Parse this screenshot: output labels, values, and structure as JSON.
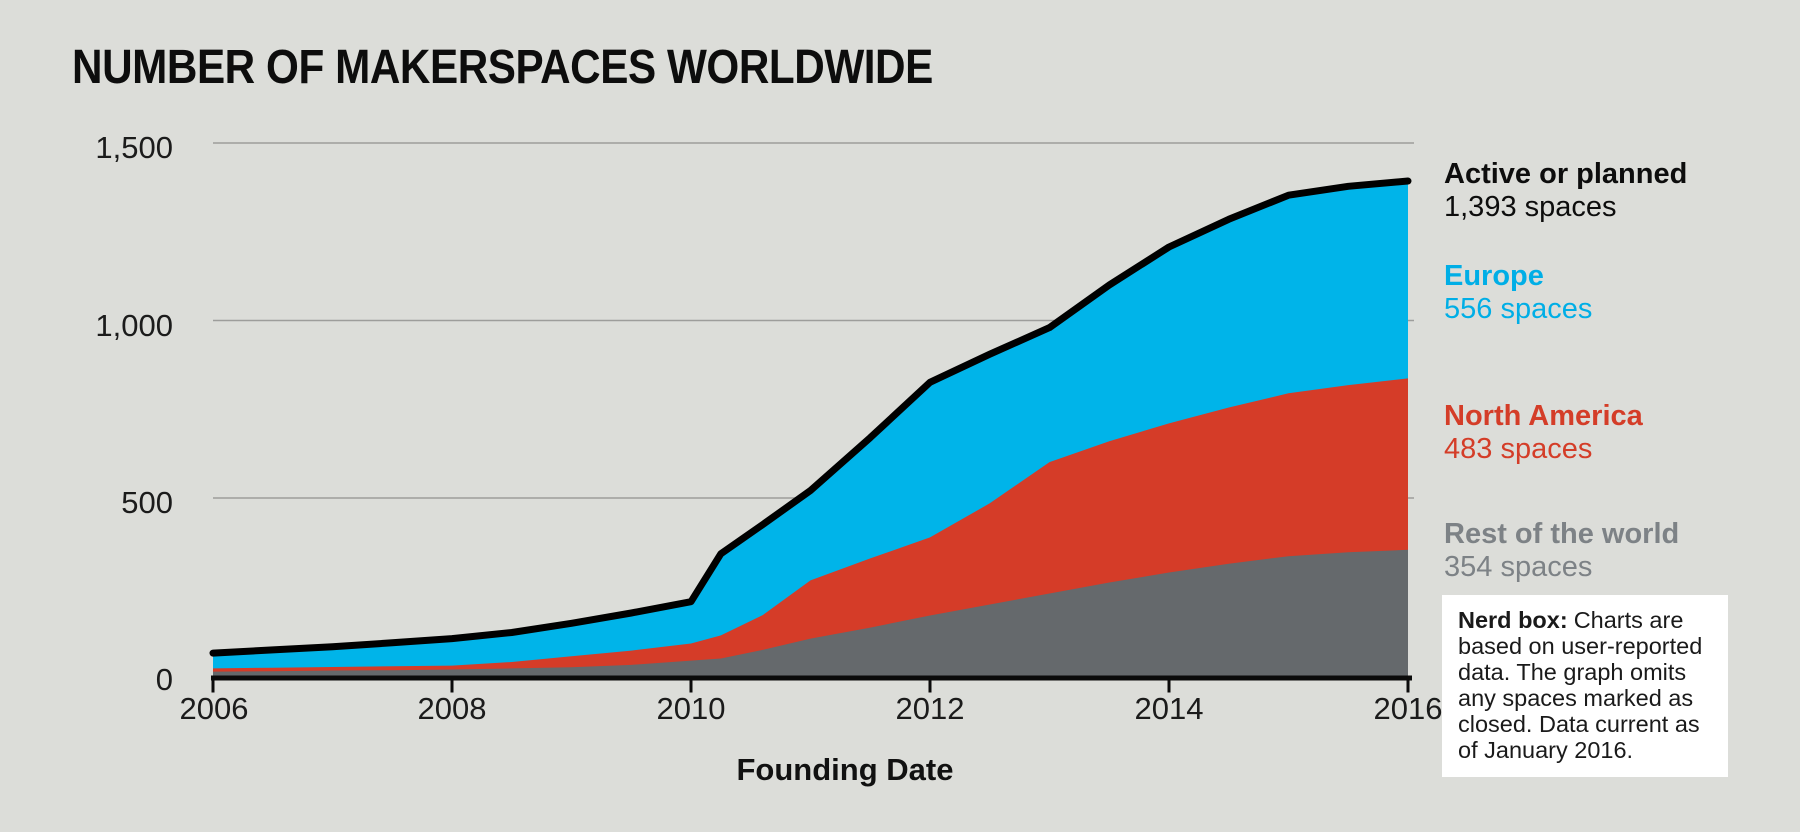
{
  "title": "NUMBER OF MAKERSPACES WORLDWIDE",
  "axes": {
    "x_label": "Founding Date",
    "x_tick_labels": [
      "2006",
      "2008",
      "2010",
      "2012",
      "2014",
      "2016"
    ],
    "y_tick_labels": [
      "0",
      "500",
      "1,000",
      "1,500"
    ]
  },
  "legend": {
    "items": [
      {
        "name": "Active or planned",
        "value": "1,393 spaces",
        "color": "#0d0d0d"
      },
      {
        "name": "Europe",
        "value": "556 spaces",
        "color": "#00aee6"
      },
      {
        "name": "North America",
        "value": "483 spaces",
        "color": "#d43d28"
      },
      {
        "name": "Rest of the world",
        "value": "354 spaces",
        "color": "#7d8286"
      }
    ]
  },
  "nerd_box": {
    "label": "Nerd box:",
    "text": "Charts are based on user-reported data. The graph omits any spaces marked as closed. Data current as of January 2016."
  },
  "chart_data": {
    "type": "area",
    "stacked": true,
    "title": "NUMBER OF MAKERSPACES WORLDWIDE",
    "xlabel": "Founding Date",
    "ylabel": "",
    "xlim": [
      2006,
      2016
    ],
    "ylim": [
      0,
      1500
    ],
    "x_ticks": [
      2006,
      2008,
      2010,
      2012,
      2014,
      2016
    ],
    "y_ticks": [
      0,
      500,
      1000,
      1500
    ],
    "grid": "horizontal",
    "legend_position": "right",
    "x": [
      2006,
      2006.5,
      2007,
      2007.5,
      2008,
      2008.5,
      2009,
      2009.5,
      2010,
      2010.25,
      2010.6,
      2011,
      2011.5,
      2012,
      2012.5,
      2013,
      2013.5,
      2014,
      2014.5,
      2015,
      2015.5,
      2016
    ],
    "series": [
      {
        "name": "Rest of the world",
        "final_value": 354,
        "color": "#65696c",
        "values": [
          11,
          12,
          14,
          15,
          17,
          20,
          23,
          30,
          42,
          48,
          72,
          104,
          135,
          169,
          200,
          231,
          262,
          290,
          315,
          336,
          347,
          354
        ]
      },
      {
        "name": "North America",
        "final_value": 483,
        "color": "#d53c28",
        "values": [
          9,
          10,
          10,
          11,
          11,
          18,
          31,
          40,
          48,
          65,
          98,
          164,
          195,
          220,
          285,
          370,
          398,
          420,
          440,
          459,
          471,
          483
        ]
      },
      {
        "name": "Europe",
        "final_value": 556,
        "color": "#00b4e9",
        "values": [
          43,
          50,
          57,
          66,
          76,
          83,
          93,
          106,
          118,
          230,
          255,
          253,
          340,
          437,
          420,
          379,
          440,
          497,
          530,
          558,
          560,
          556
        ]
      }
    ],
    "total_line": {
      "name": "Active or planned",
      "final_value": 1393,
      "color": "#000000"
    }
  }
}
